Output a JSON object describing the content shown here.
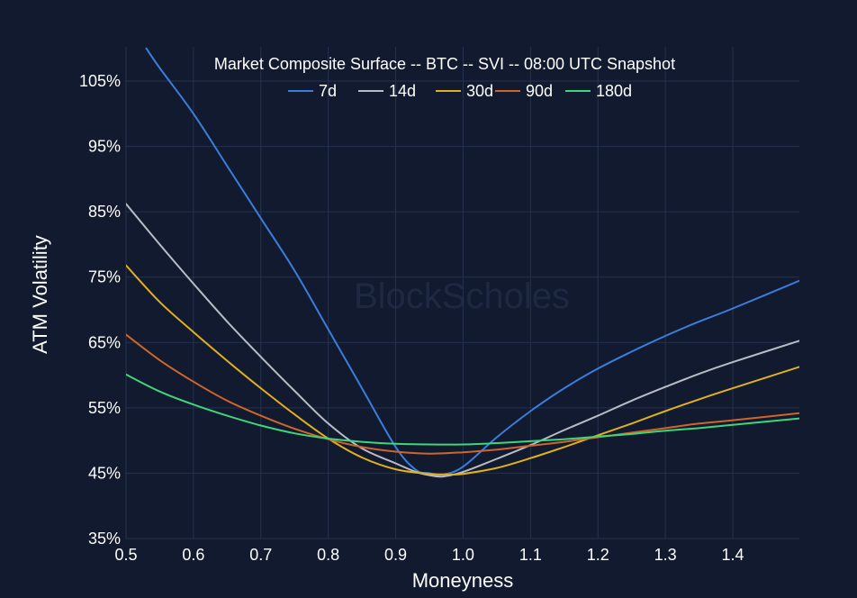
{
  "chart_data": {
    "type": "line",
    "title": "Market Composite Surface -- BTC -- SVI -- 08:00 UTC Snapshot",
    "xlabel": "Moneyness",
    "ylabel": "ATM Volatility",
    "watermark": "BlockScholes",
    "xlim": [
      0.5,
      1.5
    ],
    "ylim": [
      35,
      110
    ],
    "xticks": [
      0.5,
      0.6,
      0.7,
      0.8,
      0.9,
      1.0,
      1.1,
      1.2,
      1.3,
      1.4
    ],
    "xtick_labels": [
      "0.5",
      "0.6",
      "0.7",
      "0.8",
      "0.9",
      "1.0",
      "1.1",
      "1.2",
      "1.3",
      "1.4"
    ],
    "yticks": [
      35,
      45,
      55,
      65,
      75,
      85,
      95,
      105
    ],
    "ytick_labels": [
      "35%",
      "45%",
      "55%",
      "65%",
      "75%",
      "85%",
      "95%",
      "105%"
    ],
    "legend_position": "top-center",
    "grid": true,
    "background_color": "#111a2e",
    "series": [
      {
        "name": "7d",
        "color": "#3b7ddd",
        "x": [
          0.53,
          0.55,
          0.6,
          0.65,
          0.7,
          0.75,
          0.8,
          0.85,
          0.9,
          0.93,
          0.95,
          0.97,
          1.0,
          1.05,
          1.1,
          1.15,
          1.2,
          1.25,
          1.3,
          1.35,
          1.4,
          1.5
        ],
        "y": [
          110,
          107,
          100,
          92,
          84,
          76,
          67,
          58,
          49,
          45.5,
          45,
          44.8,
          46,
          50.5,
          54.5,
          58,
          61,
          63.6,
          66,
          68.2,
          70.2,
          74.5
        ]
      },
      {
        "name": "14d",
        "color": "#b8bcc6",
        "x": [
          0.5,
          0.55,
          0.6,
          0.65,
          0.7,
          0.75,
          0.8,
          0.85,
          0.9,
          0.93,
          0.95,
          0.97,
          1.0,
          1.05,
          1.1,
          1.15,
          1.2,
          1.25,
          1.3,
          1.35,
          1.4,
          1.5
        ],
        "y": [
          86.2,
          80,
          74,
          68.2,
          62.8,
          57.6,
          52.6,
          48.8,
          46.5,
          45.2,
          44.7,
          44.5,
          45.2,
          47.2,
          49.3,
          51.6,
          53.8,
          56.1,
          58.2,
          60.2,
          62,
          65.3
        ]
      },
      {
        "name": "30d",
        "color": "#e0b020",
        "x": [
          0.5,
          0.55,
          0.6,
          0.65,
          0.7,
          0.75,
          0.8,
          0.85,
          0.9,
          0.95,
          0.98,
          1.0,
          1.05,
          1.1,
          1.15,
          1.2,
          1.25,
          1.3,
          1.35,
          1.4,
          1.5
        ],
        "y": [
          76.8,
          71.2,
          66.6,
          62.2,
          58,
          54,
          50.3,
          47.4,
          45.6,
          44.9,
          44.8,
          44.9,
          45.8,
          47.3,
          49,
          50.8,
          52.6,
          54.5,
          56.3,
          58,
          61.3
        ]
      },
      {
        "name": "90d",
        "color": "#d0652a",
        "x": [
          0.5,
          0.55,
          0.6,
          0.65,
          0.7,
          0.75,
          0.8,
          0.85,
          0.9,
          0.95,
          1.0,
          1.05,
          1.1,
          1.15,
          1.2,
          1.25,
          1.3,
          1.35,
          1.4,
          1.5
        ],
        "y": [
          66.2,
          62.3,
          59,
          56.1,
          53.8,
          51.8,
          50.2,
          49,
          48.3,
          48,
          48.2,
          48.6,
          49.2,
          49.8,
          50.5,
          51.2,
          51.9,
          52.6,
          53.1,
          54.2
        ]
      },
      {
        "name": "180d",
        "color": "#3ed67a",
        "x": [
          0.5,
          0.55,
          0.6,
          0.65,
          0.7,
          0.75,
          0.8,
          0.85,
          0.9,
          0.95,
          1.0,
          1.05,
          1.1,
          1.15,
          1.2,
          1.25,
          1.3,
          1.35,
          1.4,
          1.5
        ],
        "y": [
          60.1,
          57.5,
          55.5,
          53.8,
          52.3,
          51.1,
          50.3,
          49.8,
          49.5,
          49.4,
          49.4,
          49.6,
          49.9,
          50.2,
          50.6,
          51,
          51.5,
          51.9,
          52.4,
          53.4
        ]
      }
    ]
  }
}
